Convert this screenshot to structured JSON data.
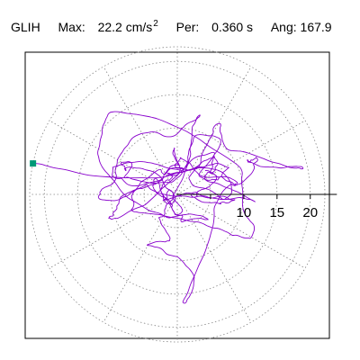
{
  "header": {
    "station": "GLIH",
    "max_label": "Max:",
    "max_value": "22.2",
    "max_unit": "cm/s",
    "max_unit_exponent": "2",
    "period_label": "Per:",
    "period_value": "0.360",
    "period_unit": "s",
    "angle_label": "Ang:",
    "angle_value": "167.9"
  },
  "chart_data": {
    "type": "polar-particle-motion",
    "radial_unit": "cm/s2",
    "max_radius": 22.2,
    "angle_deg": 167.9,
    "rings": [
      5,
      10,
      15,
      20
    ],
    "spokes_deg": [
      0,
      30,
      60,
      90,
      120,
      150,
      180,
      210,
      240,
      270,
      300,
      330
    ],
    "tick_labels": [
      "10",
      "15",
      "20"
    ],
    "tick_values": [
      10,
      15,
      20
    ],
    "grid": true,
    "colors": {
      "trace": "#8800cc",
      "marker": "#009977",
      "grid": "#888888",
      "axis": "#000000"
    }
  }
}
